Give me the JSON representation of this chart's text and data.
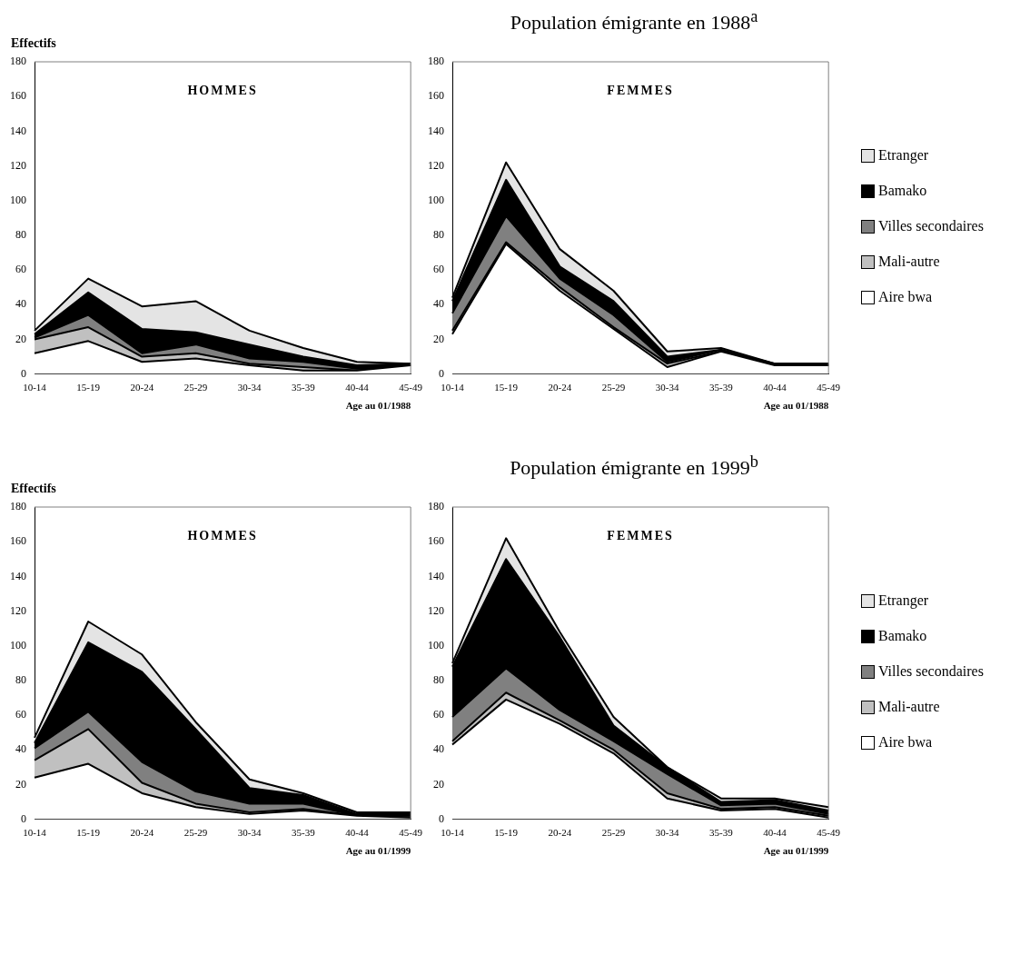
{
  "chart_data": [
    {
      "type": "area",
      "ylabel": "Effectifs",
      "xlabel": "Age au 01/1988",
      "annotations": [
        "HOMMES"
      ],
      "stacked": true,
      "legend": false,
      "grid": false,
      "ylim": [
        0,
        180
      ],
      "yticks": [
        0,
        20,
        40,
        60,
        80,
        100,
        120,
        140,
        160,
        180
      ],
      "categories": [
        "10-14",
        "15-19",
        "20-24",
        "25-29",
        "30-34",
        "35-39",
        "40-44",
        "45-49"
      ],
      "series": [
        {
          "color": "#ffffff",
          "values": [
            12,
            19,
            7,
            9,
            5,
            2,
            2,
            5
          ]
        },
        {
          "color": "#c0c0c0",
          "values": [
            8,
            8,
            3,
            3,
            1,
            2,
            0,
            0
          ]
        },
        {
          "color": "#808080",
          "values": [
            1,
            7,
            2,
            5,
            3,
            3,
            1,
            0
          ]
        },
        {
          "color": "#000000",
          "values": [
            2,
            13,
            14,
            7,
            8,
            3,
            2,
            1
          ]
        },
        {
          "color": "#e4e4e4",
          "values": [
            2,
            8,
            13,
            18,
            8,
            5,
            2,
            0
          ]
        }
      ]
    },
    {
      "type": "area",
      "title": "Population émigrante en 1988$^{a}$",
      "xlabel": "Age au 01/1988",
      "annotations": [
        "FEMMES"
      ],
      "stacked": true,
      "legend": "right",
      "grid": false,
      "ylim": [
        0,
        180
      ],
      "yticks": [
        0,
        20,
        40,
        60,
        80,
        100,
        120,
        140,
        160,
        180
      ],
      "categories": [
        "10-14",
        "15-19",
        "20-24",
        "25-29",
        "30-34",
        "35-39",
        "40-44",
        "45-49"
      ],
      "series": [
        {
          "name": "Aire bwa",
          "color": "#ffffff",
          "values": [
            23,
            75,
            48,
            26,
            4,
            13,
            5,
            5
          ]
        },
        {
          "name": "Mali-autre",
          "color": "#c0c0c0",
          "values": [
            2,
            1,
            2,
            1,
            2,
            0,
            0,
            0
          ]
        },
        {
          "name": "Villes secondaires",
          "color": "#808080",
          "values": [
            10,
            15,
            5,
            7,
            1,
            1,
            0,
            0
          ]
        },
        {
          "name": "Bamako",
          "color": "#000000",
          "values": [
            7,
            21,
            7,
            8,
            3,
            0,
            1,
            1
          ]
        },
        {
          "name": "Etranger",
          "color": "#e4e4e4",
          "values": [
            2,
            10,
            10,
            6,
            3,
            1,
            0,
            0
          ]
        }
      ]
    },
    {
      "type": "area",
      "ylabel": "Effectifs",
      "xlabel": "Age au 01/1999",
      "annotations": [
        "HOMMES"
      ],
      "stacked": true,
      "legend": false,
      "grid": false,
      "ylim": [
        0,
        180
      ],
      "yticks": [
        0,
        20,
        40,
        60,
        80,
        100,
        120,
        140,
        160,
        180
      ],
      "categories": [
        "10-14",
        "15-19",
        "20-24",
        "25-29",
        "30-34",
        "35-39",
        "40-44",
        "45-49"
      ],
      "series": [
        {
          "color": "#ffffff",
          "values": [
            24,
            32,
            15,
            7,
            3,
            5,
            2,
            1
          ]
        },
        {
          "color": "#c0c0c0",
          "values": [
            10,
            20,
            6,
            2,
            1,
            1,
            0,
            0
          ]
        },
        {
          "color": "#808080",
          "values": [
            7,
            10,
            12,
            7,
            5,
            3,
            0,
            1
          ]
        },
        {
          "color": "#000000",
          "values": [
            3,
            40,
            52,
            36,
            9,
            5,
            1,
            1
          ]
        },
        {
          "color": "#e4e4e4",
          "values": [
            3,
            12,
            10,
            4,
            5,
            1,
            1,
            1
          ]
        }
      ]
    },
    {
      "type": "area",
      "title": "Population émigrante en 1999$^{b}$",
      "xlabel": "Age au 01/1999",
      "annotations": [
        "FEMMES"
      ],
      "stacked": true,
      "legend": "right",
      "grid": false,
      "ylim": [
        0,
        180
      ],
      "yticks": [
        0,
        20,
        40,
        60,
        80,
        100,
        120,
        140,
        160,
        180
      ],
      "categories": [
        "10-14",
        "15-19",
        "20-24",
        "25-29",
        "30-34",
        "35-39",
        "40-44",
        "45-49"
      ],
      "series": [
        {
          "name": "Aire bwa",
          "color": "#ffffff",
          "values": [
            43,
            69,
            55,
            38,
            12,
            5,
            6,
            1
          ]
        },
        {
          "name": "Mali-autre",
          "color": "#c0c0c0",
          "values": [
            2,
            4,
            2,
            2,
            3,
            1,
            1,
            1
          ]
        },
        {
          "name": "Villes secondaires",
          "color": "#808080",
          "values": [
            14,
            14,
            6,
            5,
            11,
            2,
            2,
            1
          ]
        },
        {
          "name": "Bamako",
          "color": "#000000",
          "values": [
            29,
            63,
            42,
            9,
            4,
            2,
            2,
            2
          ]
        },
        {
          "name": "Etranger",
          "color": "#e4e4e4",
          "values": [
            2,
            12,
            3,
            5,
            0,
            2,
            1,
            2
          ]
        }
      ]
    }
  ]
}
